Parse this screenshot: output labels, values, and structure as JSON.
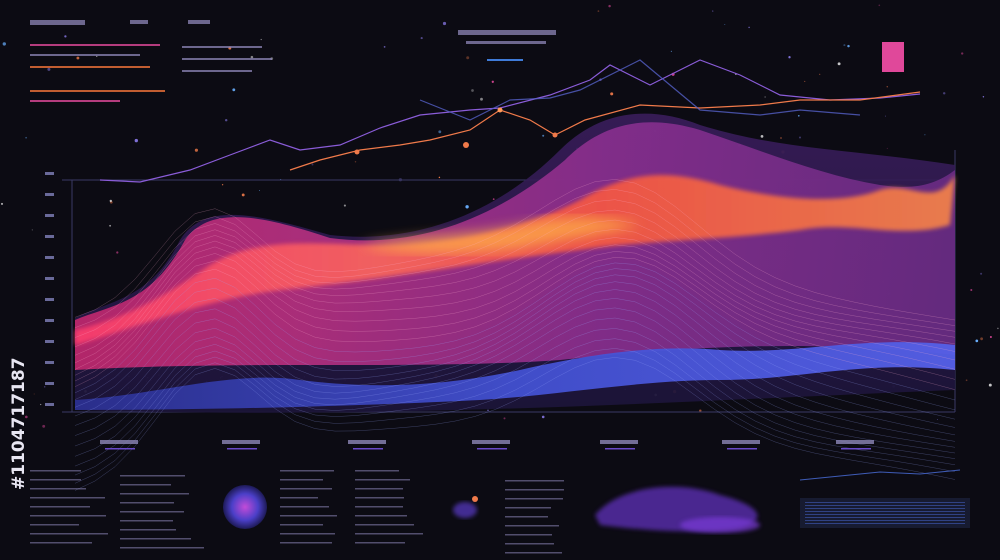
{
  "watermark_id": "#1104717187"
}
